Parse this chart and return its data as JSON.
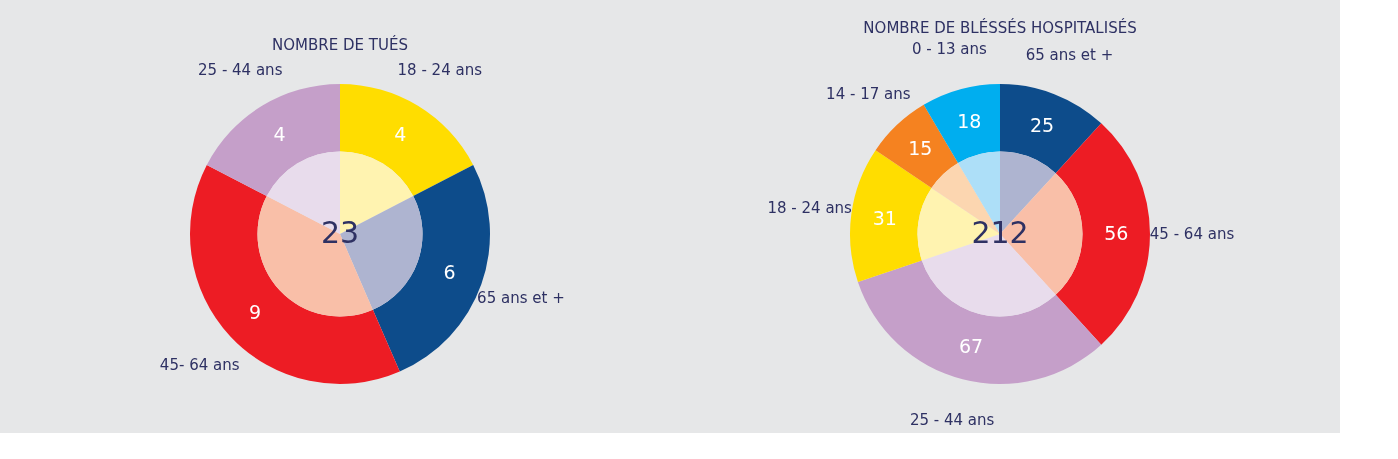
{
  "chart_data": [
    {
      "type": "donut",
      "title": "NOMBRE DE TUÉS",
      "categories": [
        "18 - 24 ans",
        "65 ans et +",
        "45- 64 ans",
        "25 - 44 ans"
      ],
      "series": [
        {
          "values": [
            4,
            6,
            9,
            4
          ],
          "value_labels": [
            "4",
            "6",
            "9",
            "4"
          ],
          "colors": [
            "#ffdd00",
            "#0d4c8b",
            "#ed1c24",
            "#c59fc9"
          ]
        },
        {
          "values": [
            17.4,
            26.1,
            39.1,
            17.4
          ],
          "colors": [
            "#fff3b0",
            "#aeb4d0",
            "#f9bfa8",
            "#e8dcec"
          ]
        }
      ],
      "annotations": [
        "23"
      ]
    },
    {
      "type": "donut",
      "title": "NOMBRE DE BLÉSSÉS HOSPITALISÉS",
      "categories": [
        "65 ans et +",
        "45 - 64 ans",
        "25 - 44 ans",
        "18 - 24 ans",
        "14 - 17 ans",
        "0 - 13 ans"
      ],
      "series": [
        {
          "values": [
            25,
            56,
            67,
            31,
            15,
            18
          ],
          "value_labels": [
            "25",
            "56",
            "67",
            "31",
            "15",
            "18"
          ],
          "colors": [
            "#0d4c8b",
            "#ed1c24",
            "#c59fc9",
            "#ffdd00",
            "#f58220",
            "#00aeef"
          ]
        },
        {
          "values": [
            11.8,
            26.4,
            31.6,
            14.6,
            7.1,
            8.5
          ],
          "colors": [
            "#aeb4d0",
            "#f9bfa8",
            "#e8dcec",
            "#fff3b0",
            "#fcd6b0",
            "#addff8"
          ]
        }
      ],
      "annotations": [
        "212"
      ]
    }
  ]
}
